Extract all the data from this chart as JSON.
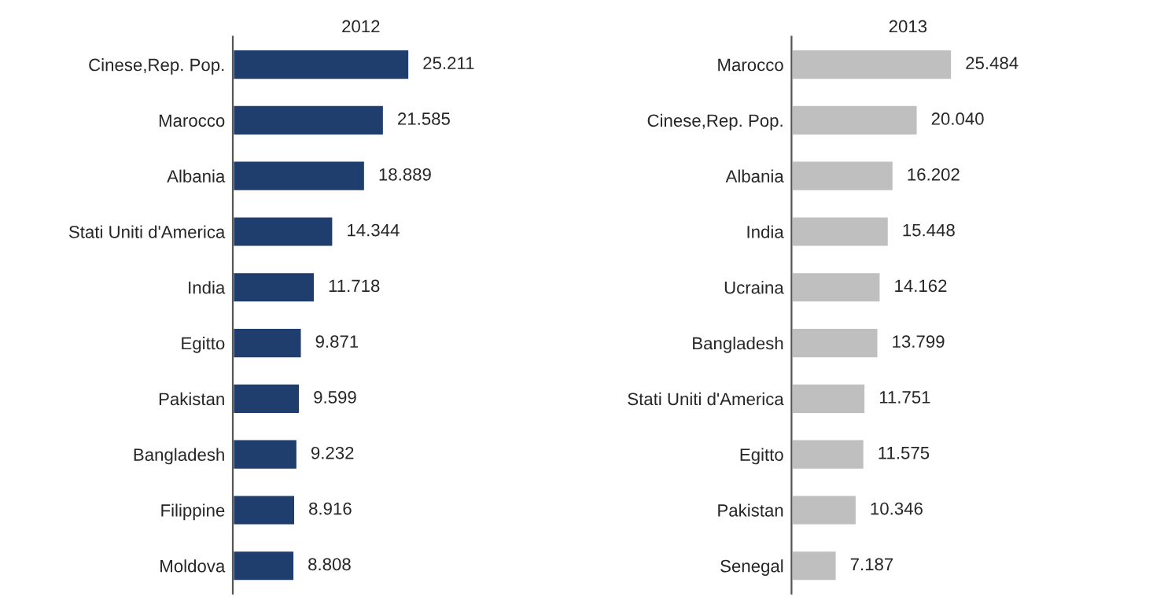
{
  "chart_data": [
    {
      "type": "bar",
      "orientation": "horizontal",
      "title": "2012",
      "categories": [
        "Cinese,Rep. Pop.",
        "Marocco",
        "Albania",
        "Stati Uniti d'America",
        "India",
        "Egitto",
        "Pakistan",
        "Bangladesh",
        "Filippine",
        "Moldova"
      ],
      "values": [
        25211,
        21585,
        18889,
        14344,
        11718,
        9871,
        9599,
        9232,
        8916,
        8808
      ],
      "value_labels": [
        "25.211",
        "21.585",
        "18.889",
        "14.344",
        "11.718",
        "9.871",
        "9.599",
        "9.232",
        "8.916",
        "8.808"
      ],
      "color": "#1f3e6e"
    },
    {
      "type": "bar",
      "orientation": "horizontal",
      "title": "2013",
      "categories": [
        "Marocco",
        "Cinese,Rep. Pop.",
        "Albania",
        "India",
        "Ucraina",
        "Bangladesh",
        "Stati Uniti d'America",
        "Egitto",
        "Pakistan",
        "Senegal"
      ],
      "values": [
        25484,
        20040,
        16202,
        15448,
        14162,
        13799,
        11751,
        11575,
        10346,
        7187
      ],
      "value_labels": [
        "25.484",
        "20.040",
        "16.202",
        "15.448",
        "14.162",
        "13.799",
        "11.751",
        "11.575",
        "10.346",
        "7.187"
      ],
      "color": "#bfbfbf"
    }
  ]
}
